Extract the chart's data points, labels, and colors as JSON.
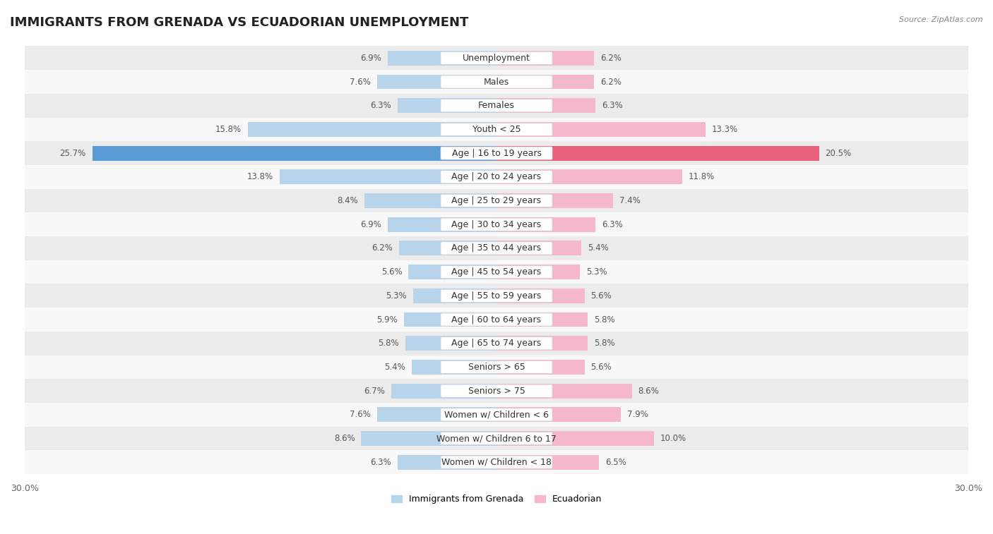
{
  "title": "IMMIGRANTS FROM GRENADA VS ECUADORIAN UNEMPLOYMENT",
  "source": "Source: ZipAtlas.com",
  "categories": [
    "Unemployment",
    "Males",
    "Females",
    "Youth < 25",
    "Age | 16 to 19 years",
    "Age | 20 to 24 years",
    "Age | 25 to 29 years",
    "Age | 30 to 34 years",
    "Age | 35 to 44 years",
    "Age | 45 to 54 years",
    "Age | 55 to 59 years",
    "Age | 60 to 64 years",
    "Age | 65 to 74 years",
    "Seniors > 65",
    "Seniors > 75",
    "Women w/ Children < 6",
    "Women w/ Children 6 to 17",
    "Women w/ Children < 18"
  ],
  "left_values": [
    6.9,
    7.6,
    6.3,
    15.8,
    25.7,
    13.8,
    8.4,
    6.9,
    6.2,
    5.6,
    5.3,
    5.9,
    5.8,
    5.4,
    6.7,
    7.6,
    8.6,
    6.3
  ],
  "right_values": [
    6.2,
    6.2,
    6.3,
    13.3,
    20.5,
    11.8,
    7.4,
    6.3,
    5.4,
    5.3,
    5.6,
    5.8,
    5.8,
    5.6,
    8.6,
    7.9,
    10.0,
    6.5
  ],
  "left_color": "#b8d4ea",
  "right_color": "#f5b8ca",
  "left_highlight_color": "#5b9bd5",
  "right_highlight_color": "#e8607a",
  "highlight_index": 4,
  "axis_limit": 30.0,
  "legend_left": "Immigrants from Grenada",
  "legend_right": "Ecuadorian",
  "row_bg_light": "#ebebeb",
  "row_bg_white": "#f8f8f8",
  "title_fontsize": 13,
  "label_fontsize": 9,
  "value_fontsize": 8.5
}
